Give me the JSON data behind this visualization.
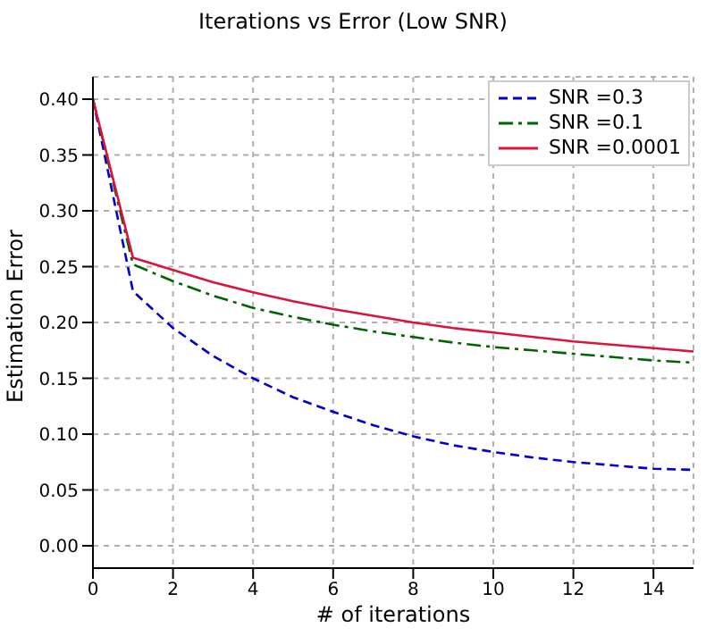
{
  "chart_data": {
    "type": "line",
    "title": "Iterations vs Error (Low SNR)",
    "xlabel": "# of iterations",
    "ylabel": "Estimation Error",
    "x": [
      0,
      1,
      2,
      3,
      4,
      5,
      6,
      7,
      8,
      9,
      10,
      11,
      12,
      13,
      14,
      15
    ],
    "series": [
      {
        "name": "SNR =0.3",
        "color": "#0000cc",
        "line_style": "dashed",
        "values": [
          0.4,
          0.228,
          0.195,
          0.17,
          0.15,
          0.133,
          0.12,
          0.108,
          0.098,
          0.09,
          0.084,
          0.079,
          0.075,
          0.072,
          0.069,
          0.068
        ]
      },
      {
        "name": "SNR =0.1",
        "color": "#006400",
        "line_style": "dashdot",
        "values": [
          0.4,
          0.252,
          0.237,
          0.224,
          0.213,
          0.205,
          0.198,
          0.192,
          0.187,
          0.182,
          0.178,
          0.175,
          0.172,
          0.169,
          0.166,
          0.164
        ]
      },
      {
        "name": "SNR =0.0001",
        "color": "#dc143c",
        "line_style": "solid",
        "values": [
          0.4,
          0.258,
          0.247,
          0.236,
          0.227,
          0.219,
          0.212,
          0.206,
          0.2,
          0.195,
          0.191,
          0.187,
          0.183,
          0.18,
          0.177,
          0.174
        ]
      }
    ],
    "xlim": [
      0,
      15
    ],
    "xticks": [
      0,
      2,
      4,
      6,
      8,
      10,
      12,
      14
    ],
    "ylim": [
      -0.02,
      0.42
    ],
    "yticks": [
      {
        "value": 0,
        "label": "0.00"
      },
      {
        "value": 0.05,
        "label": "0.05"
      },
      {
        "value": 0.1,
        "label": "0.10"
      },
      {
        "value": 0.15,
        "label": "0.15"
      },
      {
        "value": 0.2,
        "label": "0.20"
      },
      {
        "value": 0.25,
        "label": "0.25"
      },
      {
        "value": 0.3,
        "label": "0.30"
      },
      {
        "value": 0.35,
        "label": "0.35"
      },
      {
        "value": 0.4,
        "label": "0.40"
      }
    ],
    "grid": true,
    "legend": "top right",
    "marker": "none"
  }
}
